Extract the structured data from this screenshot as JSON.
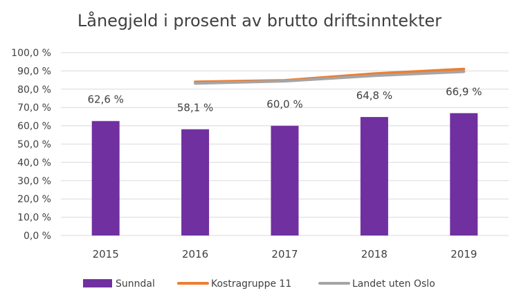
{
  "chart_data": {
    "type": "bar",
    "title": "Lånegjeld i prosent av brutto driftsinntekter",
    "categories": [
      "2015",
      "2016",
      "2017",
      "2018",
      "2019"
    ],
    "ylim": [
      0,
      100
    ],
    "yticks": [
      0,
      10,
      20,
      30,
      40,
      50,
      60,
      70,
      80,
      90,
      100
    ],
    "ytick_labels": [
      "0,0 %",
      "10,0 %",
      "20,0 %",
      "30,0 %",
      "40,0 %",
      "50,0 %",
      "60,0 %",
      "70,0 %",
      "80,0 %",
      "90,0 %",
      "100,0 %"
    ],
    "grid": true,
    "legend_position": "bottom",
    "series": [
      {
        "name": "Sunndal",
        "kind": "bar",
        "color": "#7030a0",
        "values": [
          62.6,
          58.1,
          60.0,
          64.8,
          66.9
        ],
        "labels": [
          "62,6 %",
          "58,1 %",
          "60,0 %",
          "64,8 %",
          "66,9 %"
        ]
      },
      {
        "name": "Kostragruppe 11",
        "kind": "line",
        "color": "#ed7d31",
        "values": [
          null,
          84.0,
          84.8,
          88.5,
          91.0
        ]
      },
      {
        "name": "Landet uten Oslo",
        "kind": "line",
        "color": "#a5a5a5",
        "values": [
          null,
          83.2,
          84.4,
          87.4,
          89.6
        ]
      }
    ]
  }
}
